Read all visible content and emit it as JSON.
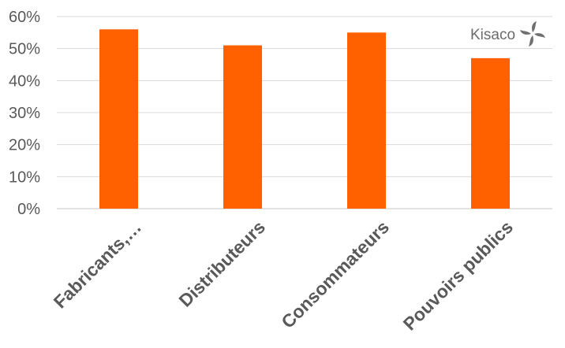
{
  "chart_data": {
    "type": "bar",
    "categories": [
      "Fabricants,…",
      "Distributeurs",
      "Consommateurs",
      "Pouvoirs publics"
    ],
    "values": [
      0.56,
      0.51,
      0.55,
      0.47
    ],
    "ylim": [
      0,
      0.6
    ],
    "yticks": [
      "0%",
      "10%",
      "20%",
      "30%",
      "40%",
      "50%",
      "60%"
    ],
    "title": "",
    "xlabel": "",
    "ylabel": "",
    "grid": "horizontal",
    "legend": "none",
    "bar_color": "#ff6000",
    "grid_color": "#d9d9d9"
  },
  "logo": {
    "text": "Kisaco",
    "icon": "pinwheel-icon"
  }
}
